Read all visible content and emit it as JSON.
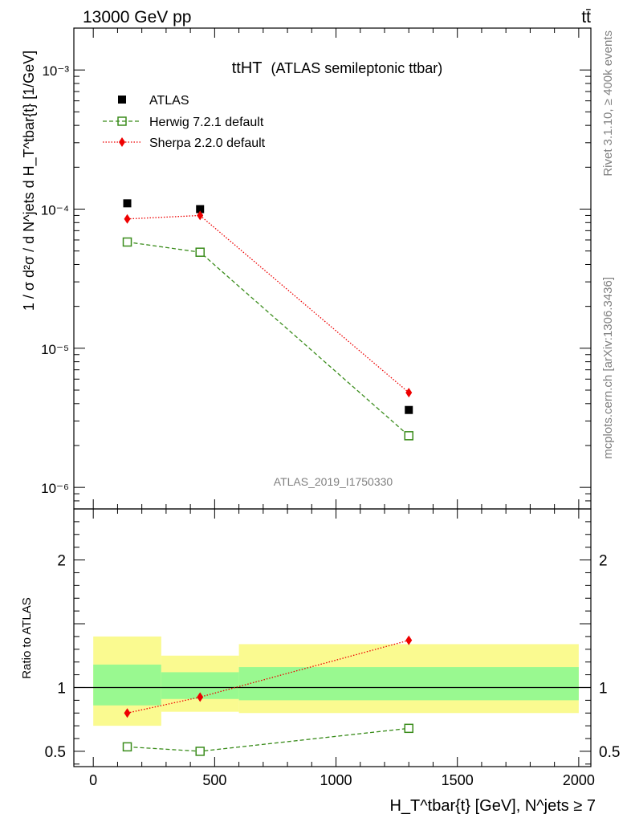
{
  "header": {
    "energy": "13000 GeV pp",
    "process": "tt̄"
  },
  "plot_title": {
    "main": "ttHT",
    "sub": "(ATLAS semileptonic ttbar)"
  },
  "side_labels": {
    "rivet": "Rivet 3.1.10, ≥ 400k events",
    "mcplots": "mcplots.cern.ch [arXiv:1306.3436]"
  },
  "watermark": "ATLAS_2019_I1750330",
  "colors": {
    "atlas": "#000000",
    "herwig": "#3a8c1b",
    "sherpa": "#ee0000",
    "band_inner": "#99f990",
    "band_outer": "#fafa90"
  },
  "chart_data": [
    {
      "type": "scatter",
      "yscale": "log",
      "ylabel": "1 / σ d²σ / d N^jets d H_T^tbar{t} [1/GeV]",
      "xlim": [
        -80,
        2050
      ],
      "ylim": [
        7e-07,
        0.002
      ],
      "y_tick_labels": [
        "10⁻⁶",
        "10⁻⁵",
        "10⁻⁴",
        "10⁻³"
      ],
      "legend": {
        "placement": "top-left",
        "entries": [
          "ATLAS",
          "Herwig 7.2.1 default",
          "Sherpa 2.2.0 default"
        ]
      },
      "bins": [
        [
          0,
          280
        ],
        [
          280,
          600
        ],
        [
          600,
          2000
        ]
      ],
      "series": [
        {
          "name": "ATLAS",
          "style": "marker",
          "x": [
            140,
            440,
            1300
          ],
          "y": [
            0.00011,
            0.0001,
            3.6e-06
          ]
        },
        {
          "name": "Herwig 7.2.1 default",
          "style": "dashed",
          "x": [
            140,
            440,
            1300
          ],
          "y": [
            5.8e-05,
            4.9e-05,
            2.35e-06
          ]
        },
        {
          "name": "Sherpa 2.2.0 default",
          "style": "dotted",
          "x": [
            140,
            440,
            1300
          ],
          "y": [
            8.5e-05,
            9e-05,
            4.8e-06
          ]
        }
      ]
    },
    {
      "type": "scatter",
      "ylabel": "Ratio to ATLAS",
      "xlabel": "H_T^tbar{t} [GeV], N^jets ≥ 7",
      "xlim": [
        -80,
        2050
      ],
      "ylim": [
        0.38,
        2.4
      ],
      "x_ticks": [
        0,
        500,
        1000,
        1500,
        2000
      ],
      "x_tick_labels": [
        "0",
        "500",
        "1000",
        "1500",
        "2000"
      ],
      "y_ticks": [
        0.5,
        1,
        2
      ],
      "y_tick_labels": [
        "0.5",
        "1",
        "2"
      ],
      "bands": [
        {
          "x": [
            0,
            280
          ],
          "inner": [
            0.86,
            1.18
          ],
          "outer": [
            0.7,
            1.4
          ]
        },
        {
          "x": [
            280,
            600
          ],
          "inner": [
            0.91,
            1.12
          ],
          "outer": [
            0.81,
            1.25
          ]
        },
        {
          "x": [
            600,
            2000
          ],
          "inner": [
            0.9,
            1.16
          ],
          "outer": [
            0.8,
            1.34
          ]
        }
      ],
      "series": [
        {
          "name": "Herwig 7.2.1 default",
          "style": "dashed",
          "x": [
            140,
            440,
            1300
          ],
          "y": [
            0.535,
            0.5,
            0.68
          ]
        },
        {
          "name": "Sherpa 2.2.0 default",
          "style": "dotted",
          "x": [
            140,
            440,
            1300
          ],
          "y": [
            0.8,
            0.925,
            1.37
          ]
        }
      ]
    }
  ]
}
